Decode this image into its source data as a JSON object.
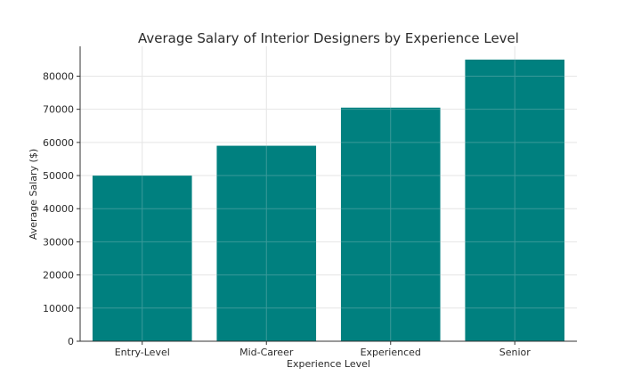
{
  "chart_data": {
    "type": "bar",
    "title": "Average Salary of Interior Designers by Experience Level",
    "xlabel": "Experience Level",
    "ylabel": "Average Salary ($)",
    "categories": [
      "Entry-Level",
      "Mid-Career",
      "Experienced",
      "Senior"
    ],
    "values": [
      50000,
      59000,
      70500,
      85000
    ],
    "ylim": [
      0,
      89000
    ],
    "yticks": [
      0,
      10000,
      20000,
      30000,
      40000,
      50000,
      60000,
      70000,
      80000
    ],
    "ytick_labels": [
      "0",
      "10000",
      "20000",
      "30000",
      "40000",
      "50000",
      "60000",
      "70000",
      "80000"
    ],
    "grid": true,
    "colors": {
      "bar": "#00807f"
    }
  }
}
